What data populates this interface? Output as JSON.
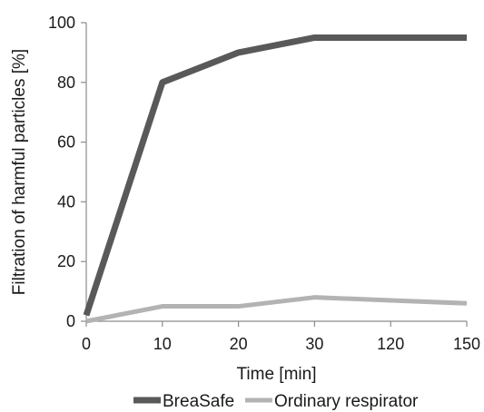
{
  "chart_data": {
    "type": "line",
    "categories": [
      "0",
      "10",
      "20",
      "30",
      "120",
      "150"
    ],
    "series": [
      {
        "name": "BreaSafe",
        "values": [
          2,
          80,
          90,
          95,
          95,
          95
        ],
        "color": "#595959"
      },
      {
        "name": "Ordinary respirator",
        "values": [
          0,
          5,
          5,
          8,
          7,
          6
        ],
        "color": "#b3b3b3"
      }
    ],
    "xlabel": "Time [min]",
    "ylabel": "Filtration of harmful particles [%]",
    "ylim": [
      0,
      100
    ],
    "yticks": [
      "0",
      "20",
      "40",
      "60",
      "80",
      "100"
    ],
    "grid": false,
    "legend_position": "bottom"
  }
}
